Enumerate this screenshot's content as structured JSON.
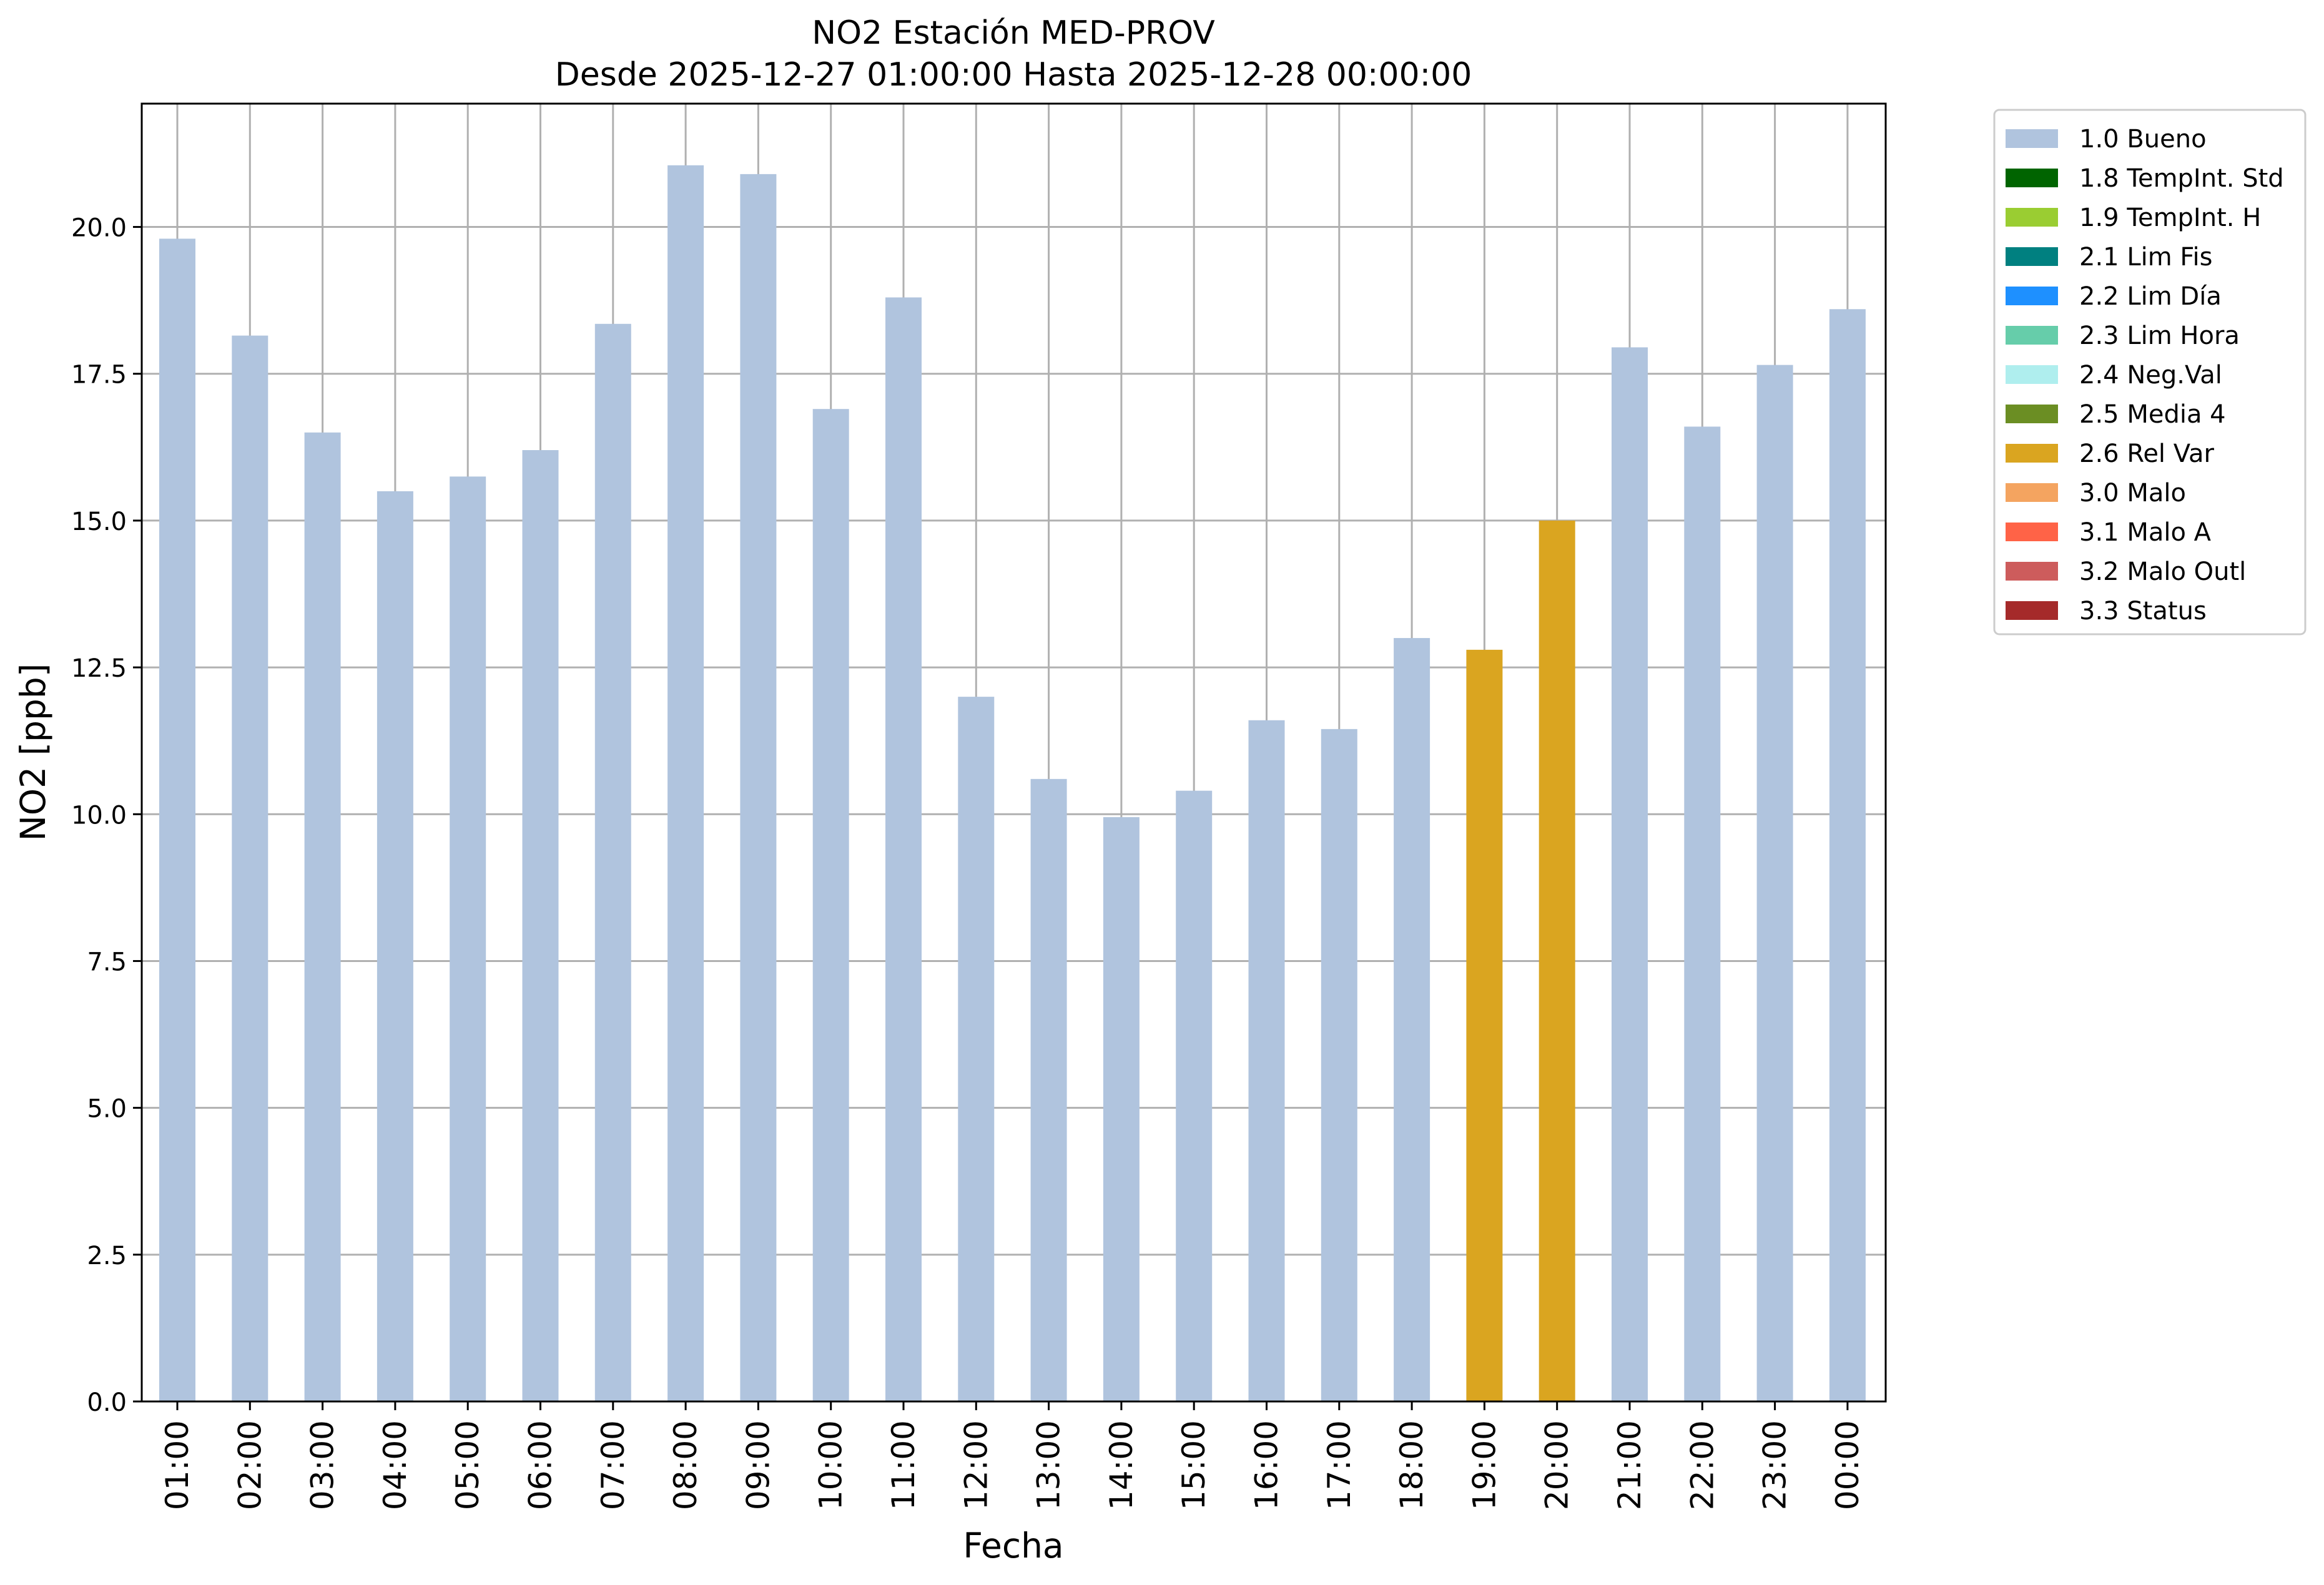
{
  "chart_data": {
    "type": "bar",
    "title": "NO2 Estación MED-PROV",
    "subtitle": "Desde 2025-12-27 01:00:00 Hasta 2025-12-28 00:00:00",
    "xlabel": "Fecha",
    "ylabel": "NO2 [ppb]",
    "ylim": [
      0,
      22.1
    ],
    "yticks": [
      "0.0",
      "2.5",
      "5.0",
      "7.5",
      "10.0",
      "12.5",
      "15.0",
      "17.5",
      "20.0"
    ],
    "grid": true,
    "legend_position": "outside-top-right",
    "categories": [
      "01:00",
      "02:00",
      "03:00",
      "04:00",
      "05:00",
      "06:00",
      "07:00",
      "08:00",
      "09:00",
      "10:00",
      "11:00",
      "12:00",
      "13:00",
      "14:00",
      "15:00",
      "16:00",
      "17:00",
      "18:00",
      "19:00",
      "20:00",
      "21:00",
      "22:00",
      "23:00",
      "00:00"
    ],
    "values": [
      19.8,
      18.15,
      16.5,
      15.5,
      15.75,
      16.2,
      18.35,
      21.05,
      20.9,
      16.9,
      18.8,
      12.0,
      10.6,
      9.95,
      10.4,
      11.6,
      11.45,
      13.0,
      12.8,
      15.0,
      17.95,
      16.6,
      17.65,
      18.6
    ],
    "flags": [
      "1.0 Bueno",
      "1.0 Bueno",
      "1.0 Bueno",
      "1.0 Bueno",
      "1.0 Bueno",
      "1.0 Bueno",
      "1.0 Bueno",
      "1.0 Bueno",
      "1.0 Bueno",
      "1.0 Bueno",
      "1.0 Bueno",
      "1.0 Bueno",
      "1.0 Bueno",
      "1.0 Bueno",
      "1.0 Bueno",
      "1.0 Bueno",
      "1.0 Bueno",
      "1.0 Bueno",
      "2.6 Rel Var",
      "2.6 Rel Var",
      "1.0 Bueno",
      "1.0 Bueno",
      "1.0 Bueno",
      "1.0 Bueno"
    ],
    "legend": [
      {
        "label": "1.0 Bueno",
        "color": "#b0c4de"
      },
      {
        "label": "1.8 TempInt. Std",
        "color": "#006400"
      },
      {
        "label": "1.9 TempInt. H",
        "color": "#9acd32"
      },
      {
        "label": "2.1 Lim Fis",
        "color": "#008080"
      },
      {
        "label": "2.2 Lim Día",
        "color": "#1e90ff"
      },
      {
        "label": "2.3 Lim Hora",
        "color": "#66cdaa"
      },
      {
        "label": "2.4 Neg.Val",
        "color": "#afeeee"
      },
      {
        "label": "2.5 Media 4",
        "color": "#6b8e23"
      },
      {
        "label": "2.6 Rel Var",
        "color": "#daa520"
      },
      {
        "label": "3.0 Malo",
        "color": "#f4a460"
      },
      {
        "label": "3.1 Malo A",
        "color": "#ff6347"
      },
      {
        "label": "3.2 Malo Outl",
        "color": "#cd5c5c"
      },
      {
        "label": "3.3 Status",
        "color": "#a52a2a"
      }
    ]
  }
}
